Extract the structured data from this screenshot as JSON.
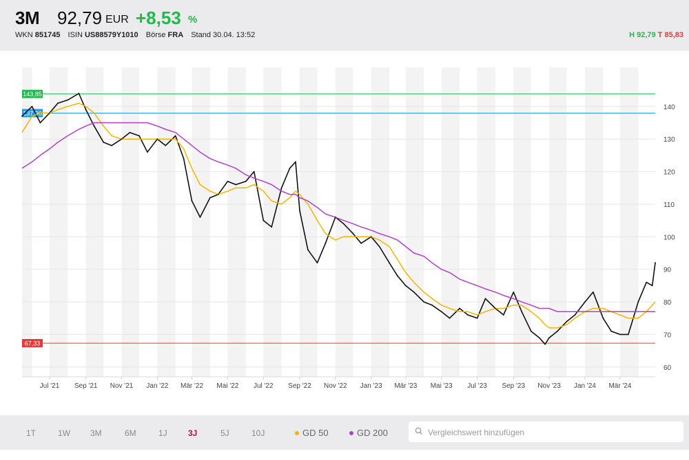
{
  "header": {
    "name": "3M",
    "price": "92,79",
    "currency": "EUR",
    "change": "+8,53",
    "change_unit": "%",
    "wkn_label": "WKN",
    "wkn": "851745",
    "isin_label": "ISIN",
    "isin": "US88579Y1010",
    "exchange_label": "Börse",
    "exchange": "FRA",
    "stand_label": "Stand",
    "stand": "30.04. 13:52",
    "high_label": "H",
    "high": "92,79",
    "low_label": "T",
    "low": "85,83",
    "colors": {
      "positive": "#21b94c",
      "negative": "#e23b3b"
    }
  },
  "footer": {
    "ranges": [
      {
        "label": "1T",
        "active": false
      },
      {
        "label": "1W",
        "active": false
      },
      {
        "label": "3M",
        "active": false
      },
      {
        "label": "6M",
        "active": false
      },
      {
        "label": "1J",
        "active": false
      },
      {
        "label": "3J",
        "active": true
      },
      {
        "label": "5J",
        "active": false
      },
      {
        "label": "10J",
        "active": false
      }
    ],
    "gd50": {
      "label": "GD 50",
      "color": "#f5b301"
    },
    "gd200": {
      "label": "GD 200",
      "color": "#b03fc9"
    },
    "search": {
      "placeholder": "Vergleichswert hinzufügen",
      "icon": "search-icon"
    }
  },
  "chart_data": {
    "type": "line",
    "x": [
      "2021-05-15",
      "2021-06-01",
      "2021-06-15",
      "2021-07-01",
      "2021-07-15",
      "2021-08-01",
      "2021-08-20",
      "2021-09-01",
      "2021-09-15",
      "2021-10-01",
      "2021-10-15",
      "2021-11-01",
      "2021-11-15",
      "2021-12-01",
      "2021-12-15",
      "2022-01-01",
      "2022-01-15",
      "2022-02-01",
      "2022-02-15",
      "2022-03-01",
      "2022-03-15",
      "2022-04-01",
      "2022-04-15",
      "2022-05-01",
      "2022-05-15",
      "2022-06-01",
      "2022-06-15",
      "2022-07-01",
      "2022-07-15",
      "2022-08-01",
      "2022-08-15",
      "2022-08-25",
      "2022-09-01",
      "2022-09-15",
      "2022-10-01",
      "2022-10-15",
      "2022-11-01",
      "2022-11-15",
      "2022-12-01",
      "2022-12-15",
      "2023-01-01",
      "2023-01-15",
      "2023-02-01",
      "2023-02-15",
      "2023-03-01",
      "2023-03-15",
      "2023-04-01",
      "2023-04-15",
      "2023-05-01",
      "2023-05-15",
      "2023-06-01",
      "2023-06-15",
      "2023-07-01",
      "2023-07-15",
      "2023-08-01",
      "2023-08-15",
      "2023-09-01",
      "2023-09-15",
      "2023-10-01",
      "2023-10-15",
      "2023-10-25",
      "2023-11-01",
      "2023-11-15",
      "2023-12-01",
      "2023-12-15",
      "2024-01-01",
      "2024-01-15",
      "2024-02-01",
      "2024-02-15",
      "2024-03-01",
      "2024-03-15",
      "2024-04-01",
      "2024-04-15",
      "2024-04-25",
      "2024-04-30"
    ],
    "series": [
      {
        "values": [
          137,
          140,
          135,
          138,
          141,
          142,
          144,
          139,
          134,
          129,
          128,
          130,
          132,
          131,
          126,
          130,
          128,
          131,
          124,
          111,
          106,
          112,
          113,
          117,
          116,
          117,
          120,
          105,
          103,
          115,
          121,
          123,
          108,
          96,
          92,
          98,
          106,
          104,
          101,
          98,
          100,
          97,
          92,
          88,
          85,
          83,
          80,
          79,
          77,
          75,
          78,
          76,
          75,
          81,
          78,
          76,
          83,
          77,
          71,
          69,
          67,
          69,
          71,
          74,
          76,
          80,
          83,
          75,
          71,
          70,
          70,
          80,
          86,
          85,
          92
        ],
        "color": "#111111"
      },
      {
        "values": [
          132,
          137,
          138,
          138,
          139,
          140,
          141,
          140,
          138,
          134,
          131,
          130,
          130,
          130,
          130,
          130,
          130,
          130,
          127,
          121,
          116,
          114,
          113,
          114,
          115,
          115,
          116,
          114,
          111,
          110,
          112,
          114,
          113,
          110,
          105,
          101,
          99,
          100,
          100,
          100,
          100,
          99,
          97,
          93,
          89,
          86,
          83,
          81,
          79,
          78,
          77,
          77,
          76,
          77,
          78,
          78,
          79,
          79,
          77,
          75,
          73,
          72,
          72,
          73,
          75,
          77,
          78,
          78,
          77,
          76,
          75,
          75,
          77,
          79,
          80
        ],
        "label": "GD 50",
        "color": "#f5b301"
      },
      {
        "values": [
          121,
          123,
          125,
          127,
          129,
          131,
          133,
          134,
          135,
          135,
          135,
          135,
          135,
          135,
          135,
          134,
          133,
          132,
          130,
          128,
          126,
          124,
          123,
          122,
          121,
          119,
          118,
          117,
          116,
          114,
          113,
          113,
          112,
          111,
          109,
          107,
          106,
          105,
          104,
          103,
          102,
          101,
          100,
          99,
          97,
          95,
          94,
          92,
          90,
          89,
          87,
          86,
          85,
          84,
          83,
          82,
          81,
          80,
          79,
          78,
          78,
          78,
          77,
          77,
          77,
          77,
          77,
          77,
          77,
          77,
          77,
          77,
          77,
          77,
          77
        ],
        "label": "GD 200",
        "color": "#b03fc9"
      }
    ],
    "xticks": [
      {
        "date": "2021-07-01",
        "label": "Jul '21"
      },
      {
        "date": "2021-09-01",
        "label": "Sep '21"
      },
      {
        "date": "2021-11-01",
        "label": "Nov '21"
      },
      {
        "date": "2022-01-01",
        "label": "Jan '22"
      },
      {
        "date": "2022-03-01",
        "label": "Mär '22"
      },
      {
        "date": "2022-05-01",
        "label": "Mai '22"
      },
      {
        "date": "2022-07-01",
        "label": "Jul '22"
      },
      {
        "date": "2022-09-01",
        "label": "Sep '22"
      },
      {
        "date": "2022-11-01",
        "label": "Nov '22"
      },
      {
        "date": "2023-01-01",
        "label": "Jan '23"
      },
      {
        "date": "2023-03-01",
        "label": "Mär '23"
      },
      {
        "date": "2023-05-01",
        "label": "Mai '23"
      },
      {
        "date": "2023-07-01",
        "label": "Jul '23"
      },
      {
        "date": "2023-09-01",
        "label": "Sep '23"
      },
      {
        "date": "2023-11-01",
        "label": "Nov '23"
      },
      {
        "date": "2024-01-01",
        "label": "Jan '24"
      },
      {
        "date": "2024-03-01",
        "label": "Mär '24"
      }
    ],
    "yticks": [
      60,
      70,
      80,
      90,
      100,
      110,
      120,
      130,
      140
    ],
    "ylim": [
      57,
      152
    ],
    "xlim": [
      "2021-05-15",
      "2024-04-30"
    ],
    "hlines": [
      {
        "value": 143.85,
        "label": "143,85",
        "color": "#21b94c"
      },
      {
        "value": 137.96,
        "label": "137,96",
        "color": "#1f9bea"
      },
      {
        "value": 67.33,
        "label": "67,33",
        "color": "#e23b3b"
      }
    ],
    "grid": true,
    "alternating_month_bands": true
  }
}
